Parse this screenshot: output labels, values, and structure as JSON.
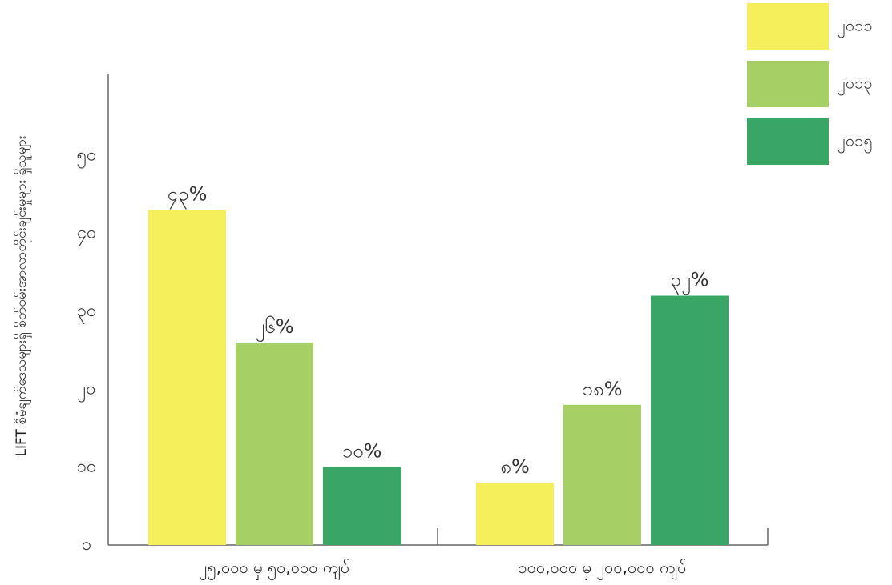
{
  "chart_data": {
    "type": "bar",
    "ylabel": "LIFT စီမံချက်ဒေသများရှိ စိတ်ဝမ်းအာလာတိုင်းချင်းမှုများ ရှိသူများ",
    "ylim": [
      0,
      60
    ],
    "yticks": [
      {
        "value": 0,
        "label": "၀"
      },
      {
        "value": 10,
        "label": "၁၀"
      },
      {
        "value": 20,
        "label": "၂၀"
      },
      {
        "value": 30,
        "label": "၃၀"
      },
      {
        "value": 40,
        "label": "၄၀"
      },
      {
        "value": 50,
        "label": "၅၀"
      }
    ],
    "categories": [
      "၂၅,၀၀၀ မှ ၅၀,၀၀၀ ကျပ်",
      "၁၀၀,၀၀၀ မှ ၂၀၀,၀၀၀ ကျပ်"
    ],
    "series": [
      {
        "name": "၂၀၁၁",
        "color": "#f5ef5b",
        "values": [
          43,
          8
        ],
        "labels": [
          "၄၃%",
          "၈%"
        ]
      },
      {
        "name": "၂၀၁၃",
        "color": "#a6d066",
        "values": [
          26,
          18
        ],
        "labels": [
          "၂၆%",
          "၁၈%"
        ]
      },
      {
        "name": "၂၀၁၅",
        "color": "#3aa666",
        "values": [
          10,
          32
        ],
        "labels": [
          "၁၀%",
          "၃၂%"
        ]
      }
    ],
    "legend_position": "top-right",
    "grid": false
  }
}
